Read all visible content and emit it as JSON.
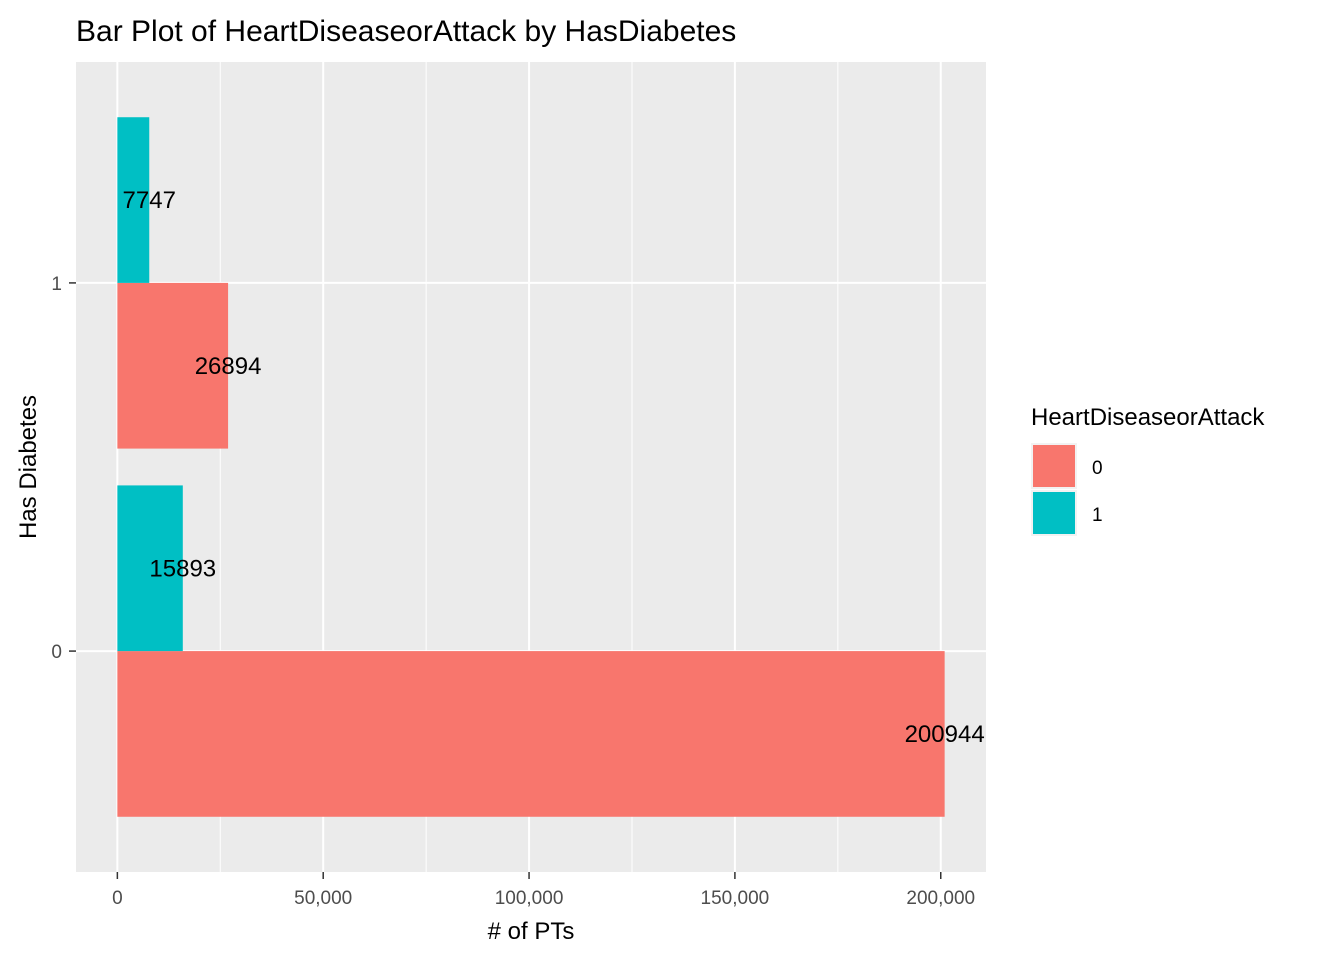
{
  "chart_data": {
    "type": "bar",
    "orientation": "horizontal",
    "title": "Bar Plot of HeartDiseaseorAttack by HasDiabetes",
    "xlabel": "# of PTs",
    "ylabel": "Has Diabetes",
    "categories": [
      "0",
      "1"
    ],
    "series": [
      {
        "name": "0",
        "color": "#F8766D",
        "values": [
          200944,
          26894
        ],
        "labels": [
          "200944",
          "26894"
        ]
      },
      {
        "name": "1",
        "color": "#00BFC4",
        "values": [
          15893,
          7747
        ],
        "labels": [
          "15893",
          "7747"
        ]
      }
    ],
    "xlim": [
      -10047,
      210991
    ],
    "x_ticks": [
      0,
      50000,
      100000,
      150000,
      200000
    ],
    "x_tick_labels": [
      "0",
      "50,000",
      "100,000",
      "150,000",
      "200,000"
    ],
    "legend": {
      "title": "HeartDiseaseorAttack",
      "position": "right"
    },
    "grid": true,
    "panel_background": "#EBEBEB"
  }
}
